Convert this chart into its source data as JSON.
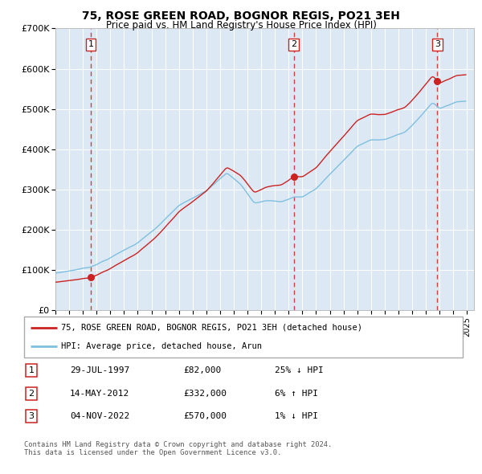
{
  "title": "75, ROSE GREEN ROAD, BOGNOR REGIS, PO21 3EH",
  "subtitle": "Price paid vs. HM Land Registry's House Price Index (HPI)",
  "background_color": "#dce9f5",
  "plot_bg_color": "#dce9f5",
  "sale_dates_float": [
    1997.581,
    2012.369,
    2022.836
  ],
  "sale_prices": [
    82000,
    332000,
    570000
  ],
  "sale_labels": [
    "1",
    "2",
    "3"
  ],
  "sale_info": [
    [
      "1",
      "29-JUL-1997",
      "£82,000",
      "25% ↓ HPI"
    ],
    [
      "2",
      "14-MAY-2012",
      "£332,000",
      "6% ↑ HPI"
    ],
    [
      "3",
      "04-NOV-2022",
      "£570,000",
      "1% ↓ HPI"
    ]
  ],
  "legend_line1": "75, ROSE GREEN ROAD, BOGNOR REGIS, PO21 3EH (detached house)",
  "legend_line2": "HPI: Average price, detached house, Arun",
  "footer1": "Contains HM Land Registry data © Crown copyright and database right 2024.",
  "footer2": "This data is licensed under the Open Government Licence v3.0.",
  "hpi_color": "#7fbfdf",
  "price_color": "#cc2222",
  "marker_color": "#cc2222",
  "dashed_color": "#cc2222",
  "ylim": [
    0,
    700000
  ],
  "yticks": [
    0,
    100000,
    200000,
    300000,
    400000,
    500000,
    600000,
    700000
  ],
  "ytick_labels": [
    "£0",
    "£100K",
    "£200K",
    "£300K",
    "£400K",
    "£500K",
    "£600K",
    "£700K"
  ],
  "xstart": 1995.0,
  "xend": 2025.5
}
